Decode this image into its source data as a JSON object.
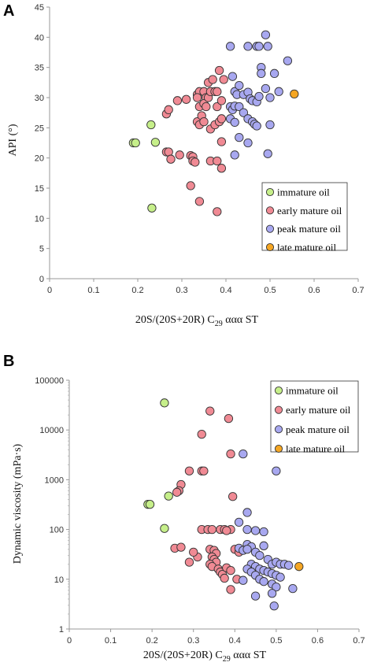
{
  "chart_data": [
    {
      "panel_label": "A",
      "type": "scatter",
      "xlabel": "20S/(20S+20R) C",
      "xlabel_sub": "29",
      "xlabel_suffix": " ααα ST",
      "ylabel": "API (°)",
      "xlim": [
        0,
        0.7
      ],
      "ylim": [
        0,
        45
      ],
      "x_ticks": [
        "0",
        "0.1",
        "0.2",
        "0.3",
        "0.4",
        "0.5",
        "0.6",
        "0.7"
      ],
      "y_ticks": [
        "0",
        "5",
        "10",
        "15",
        "20",
        "25",
        "30",
        "35",
        "40",
        "45"
      ],
      "y_scale": "linear",
      "legend_position": "bottom-right",
      "series": [
        {
          "name": "immature oil",
          "color": "#c6ef8a",
          "points": [
            [
              0.19,
              22.5
            ],
            [
              0.195,
              22.5
            ],
            [
              0.23,
              25.5
            ],
            [
              0.24,
              22.6
            ],
            [
              0.232,
              11.7
            ]
          ]
        },
        {
          "name": "early mature oil",
          "color": "#f08a94",
          "points": [
            [
              0.265,
              27.3
            ],
            [
              0.27,
              28
            ],
            [
              0.265,
              21
            ],
            [
              0.27,
              21
            ],
            [
              0.275,
              19.8
            ],
            [
              0.29,
              29.5
            ],
            [
              0.295,
              20.5
            ],
            [
              0.31,
              29.7
            ],
            [
              0.32,
              20.4
            ],
            [
              0.325,
              20.2
            ],
            [
              0.325,
              19.5
            ],
            [
              0.33,
              19.3
            ],
            [
              0.32,
              15.4
            ],
            [
              0.335,
              30.5
            ],
            [
              0.34,
              31
            ],
            [
              0.335,
              30
            ],
            [
              0.34,
              28.5
            ],
            [
              0.335,
              26
            ],
            [
              0.34,
              25.5
            ],
            [
              0.345,
              27
            ],
            [
              0.35,
              31
            ],
            [
              0.355,
              30
            ],
            [
              0.35,
              29
            ],
            [
              0.355,
              28.5
            ],
            [
              0.35,
              26
            ],
            [
              0.36,
              32.5
            ],
            [
              0.36,
              30
            ],
            [
              0.365,
              31
            ],
            [
              0.365,
              24.8
            ],
            [
              0.37,
              33
            ],
            [
              0.375,
              31
            ],
            [
              0.38,
              31
            ],
            [
              0.375,
              25.5
            ],
            [
              0.38,
              28.5
            ],
            [
              0.385,
              34.5
            ],
            [
              0.385,
              26
            ],
            [
              0.39,
              26.5
            ],
            [
              0.395,
              33
            ],
            [
              0.39,
              29.5
            ],
            [
              0.365,
              19.5
            ],
            [
              0.38,
              19.5
            ],
            [
              0.39,
              18.3
            ],
            [
              0.39,
              22.7
            ],
            [
              0.34,
              12.8
            ],
            [
              0.38,
              11.1
            ]
          ]
        },
        {
          "name": "peak mature oil",
          "color": "#a8a8f0",
          "points": [
            [
              0.41,
              38.5
            ],
            [
              0.45,
              38.5
            ],
            [
              0.47,
              38.5
            ],
            [
              0.475,
              38.5
            ],
            [
              0.49,
              40.4
            ],
            [
              0.495,
              38.5
            ],
            [
              0.54,
              36.1
            ],
            [
              0.415,
              33.5
            ],
            [
              0.42,
              31
            ],
            [
              0.43,
              32
            ],
            [
              0.425,
              30.5
            ],
            [
              0.44,
              30.5
            ],
            [
              0.45,
              30.9
            ],
            [
              0.455,
              29.8
            ],
            [
              0.46,
              29.5
            ],
            [
              0.47,
              29.3
            ],
            [
              0.475,
              30.2
            ],
            [
              0.48,
              35
            ],
            [
              0.48,
              34
            ],
            [
              0.49,
              31.5
            ],
            [
              0.5,
              30
            ],
            [
              0.51,
              34
            ],
            [
              0.52,
              31
            ],
            [
              0.41,
              28.5
            ],
            [
              0.415,
              28
            ],
            [
              0.42,
              28.6
            ],
            [
              0.43,
              28.5
            ],
            [
              0.44,
              27.5
            ],
            [
              0.45,
              26.5
            ],
            [
              0.46,
              26
            ],
            [
              0.465,
              25.6
            ],
            [
              0.47,
              25.3
            ],
            [
              0.5,
              25.5
            ],
            [
              0.41,
              26.5
            ],
            [
              0.42,
              25.9
            ],
            [
              0.43,
              23.4
            ],
            [
              0.45,
              22.5
            ],
            [
              0.42,
              20.5
            ],
            [
              0.495,
              20.7
            ]
          ]
        },
        {
          "name": "late mature oil",
          "color": "#f5a623",
          "points": [
            [
              0.555,
              30.6
            ]
          ]
        }
      ]
    },
    {
      "panel_label": "B",
      "type": "scatter",
      "xlabel": "20S/(20S+20R) C",
      "xlabel_sub": "29",
      "xlabel_suffix": " ααα ST",
      "ylabel": "Dynamic viscosity (mPa·s)",
      "xlim": [
        0,
        0.7
      ],
      "ylim": [
        1,
        100000
      ],
      "x_ticks": [
        "0",
        "0.1",
        "0.2",
        "0.3",
        "0.4",
        "0.5",
        "0.6",
        "0.7"
      ],
      "y_ticks": [
        "1",
        "10",
        "100",
        "1000",
        "10000",
        "100000"
      ],
      "y_scale": "log",
      "legend_position": "top-right",
      "series": [
        {
          "name": "immature oil",
          "color": "#c6ef8a",
          "points": [
            [
              0.23,
              35000
            ],
            [
              0.19,
              320
            ],
            [
              0.195,
              320
            ],
            [
              0.24,
              470
            ],
            [
              0.23,
              105
            ]
          ]
        },
        {
          "name": "early mature oil",
          "color": "#f08a94",
          "points": [
            [
              0.34,
              24000
            ],
            [
              0.385,
              17000
            ],
            [
              0.32,
              8200
            ],
            [
              0.39,
              3300
            ],
            [
              0.29,
              1500
            ],
            [
              0.32,
              1500
            ],
            [
              0.325,
              1500
            ],
            [
              0.27,
              800
            ],
            [
              0.265,
              600
            ],
            [
              0.26,
              560
            ],
            [
              0.395,
              460
            ],
            [
              0.255,
              42
            ],
            [
              0.27,
              44
            ],
            [
              0.32,
              100
            ],
            [
              0.335,
              100
            ],
            [
              0.345,
              100
            ],
            [
              0.365,
              100
            ],
            [
              0.375,
              100
            ],
            [
              0.39,
              100
            ],
            [
              0.38,
              95
            ],
            [
              0.34,
              40
            ],
            [
              0.35,
              38
            ],
            [
              0.355,
              33
            ],
            [
              0.345,
              28
            ],
            [
              0.35,
              25
            ],
            [
              0.355,
              22
            ],
            [
              0.34,
              20
            ],
            [
              0.345,
              18
            ],
            [
              0.36,
              16
            ],
            [
              0.365,
              14
            ],
            [
              0.37,
              12.5
            ],
            [
              0.375,
              10.5
            ],
            [
              0.38,
              17
            ],
            [
              0.39,
              15
            ],
            [
              0.4,
              40
            ],
            [
              0.41,
              35
            ],
            [
              0.405,
              10
            ],
            [
              0.29,
              22
            ],
            [
              0.31,
              28
            ],
            [
              0.39,
              6.2
            ],
            [
              0.3,
              35
            ]
          ]
        },
        {
          "name": "peak mature oil",
          "color": "#a8a8f0",
          "points": [
            [
              0.42,
              3300
            ],
            [
              0.5,
              1500
            ],
            [
              0.43,
              220
            ],
            [
              0.41,
              140
            ],
            [
              0.43,
              100
            ],
            [
              0.45,
              95
            ],
            [
              0.47,
              90
            ],
            [
              0.43,
              50
            ],
            [
              0.44,
              45
            ],
            [
              0.47,
              47
            ],
            [
              0.41,
              42
            ],
            [
              0.42,
              38
            ],
            [
              0.43,
              40
            ],
            [
              0.45,
              35
            ],
            [
              0.46,
              30
            ],
            [
              0.48,
              25
            ],
            [
              0.49,
              20
            ],
            [
              0.5,
              22
            ],
            [
              0.51,
              20
            ],
            [
              0.52,
              20
            ],
            [
              0.53,
              19
            ],
            [
              0.44,
              20
            ],
            [
              0.45,
              18
            ],
            [
              0.46,
              16
            ],
            [
              0.47,
              15
            ],
            [
              0.48,
              14
            ],
            [
              0.49,
              13
            ],
            [
              0.5,
              12
            ],
            [
              0.51,
              11
            ],
            [
              0.43,
              16
            ],
            [
              0.44,
              14
            ],
            [
              0.45,
              12
            ],
            [
              0.46,
              10
            ],
            [
              0.47,
              9
            ],
            [
              0.49,
              8
            ],
            [
              0.5,
              7
            ],
            [
              0.45,
              4.6
            ],
            [
              0.49,
              5.2
            ],
            [
              0.495,
              2.9
            ],
            [
              0.54,
              6.5
            ],
            [
              0.42,
              9.5
            ]
          ]
        },
        {
          "name": "late mature oil",
          "color": "#f5a623",
          "points": [
            [
              0.555,
              18
            ]
          ]
        }
      ]
    }
  ]
}
